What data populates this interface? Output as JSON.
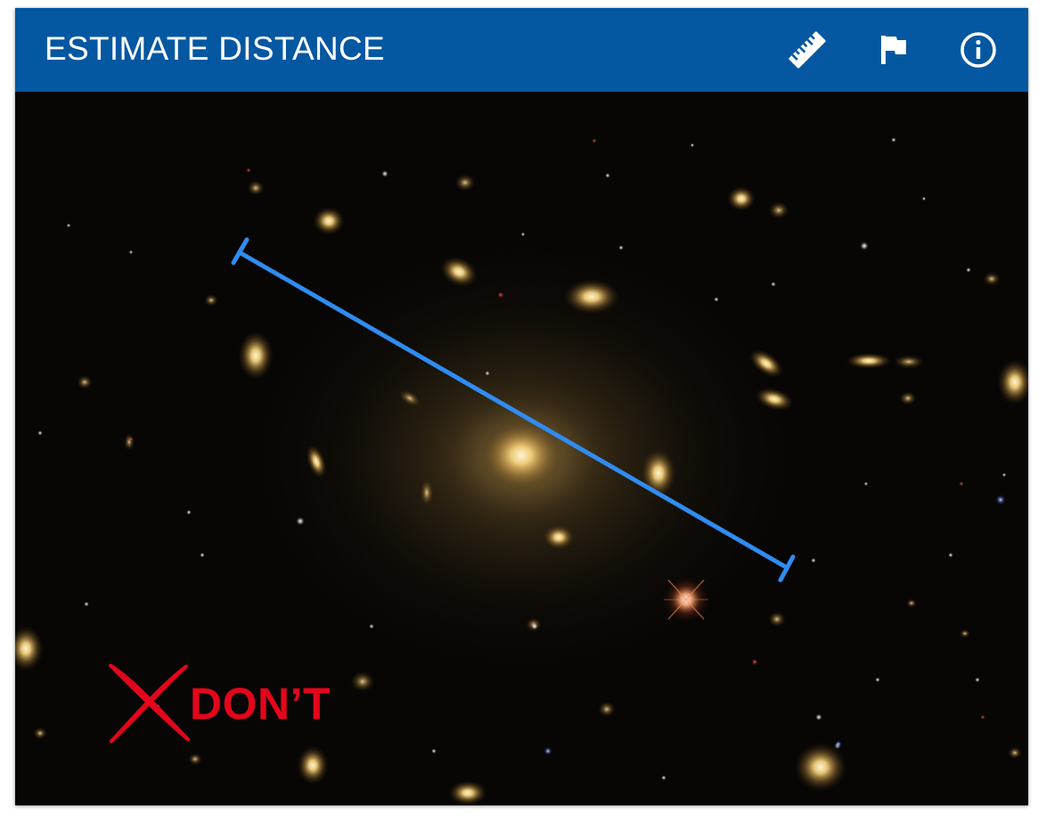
{
  "header": {
    "title": "ESTIMATE DISTANCE",
    "bar_color": "#0457a1",
    "tools": [
      {
        "name": "ruler-tool",
        "icon": "ruler-icon"
      },
      {
        "name": "flag-tool",
        "icon": "flag-icon"
      },
      {
        "name": "info-tool",
        "icon": "info-icon"
      }
    ]
  },
  "image": {
    "subject": "galaxy cluster",
    "measure_line_color": "#2f8cf0"
  },
  "example": {
    "label": "DON’T",
    "mark_icon": "cross-icon",
    "color": "#e3061a"
  }
}
